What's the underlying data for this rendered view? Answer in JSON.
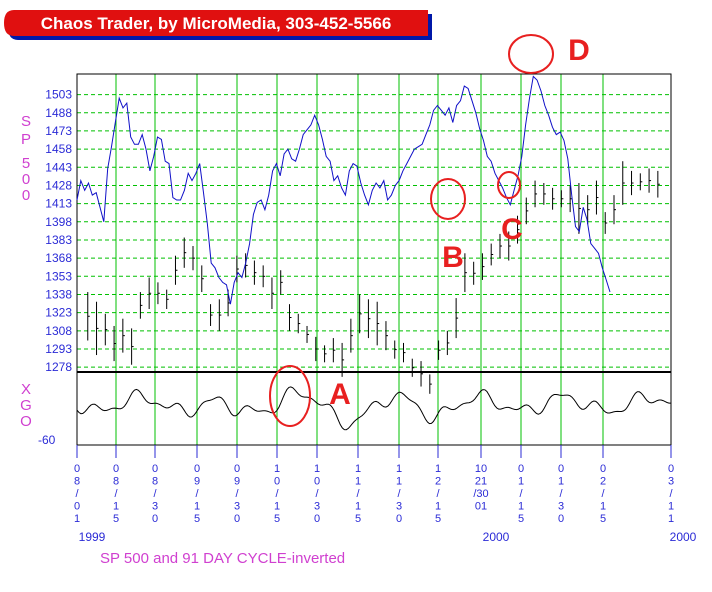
{
  "banner": {
    "title": "Chaos Trader, by MicroMedia, 303-452-5566"
  },
  "caption": "SP 500 and 91 DAY CYCLE-inverted",
  "chart_data": {
    "type": "line",
    "title": "Chaos Trader, by MicroMedia, 303-452-5566",
    "subtitle": "SP 500 and 91 DAY CYCLE-inverted",
    "upper_panel": {
      "ylabel": "SP 500",
      "yticks": [
        1278,
        1293,
        1308,
        1323,
        1338,
        1353,
        1368,
        1383,
        1398,
        1413,
        1428,
        1443,
        1458,
        1473,
        1488,
        1503
      ],
      "ylim": [
        1274,
        1520
      ],
      "price_bars": [
        {
          "x": 1.0,
          "h": 1340,
          "l": 1300
        },
        {
          "x": 2.0,
          "h": 1332,
          "l": 1288
        },
        {
          "x": 3.0,
          "h": 1322,
          "l": 1296
        },
        {
          "x": 4.0,
          "h": 1312,
          "l": 1283
        },
        {
          "x": 5.0,
          "h": 1318,
          "l": 1290
        },
        {
          "x": 6.0,
          "h": 1310,
          "l": 1280
        },
        {
          "x": 7.0,
          "h": 1340,
          "l": 1318
        },
        {
          "x": 8.0,
          "h": 1352,
          "l": 1326
        },
        {
          "x": 9.0,
          "h": 1348,
          "l": 1330
        },
        {
          "x": 10.0,
          "h": 1342,
          "l": 1326
        },
        {
          "x": 11.0,
          "h": 1370,
          "l": 1346
        },
        {
          "x": 12.0,
          "h": 1385,
          "l": 1360
        },
        {
          "x": 13.0,
          "h": 1378,
          "l": 1358
        },
        {
          "x": 14.0,
          "h": 1362,
          "l": 1340
        },
        {
          "x": 15.0,
          "h": 1330,
          "l": 1312
        },
        {
          "x": 16.0,
          "h": 1334,
          "l": 1308
        },
        {
          "x": 17.0,
          "h": 1342,
          "l": 1320
        },
        {
          "x": 18.0,
          "h": 1370,
          "l": 1348
        },
        {
          "x": 19.0,
          "h": 1372,
          "l": 1352
        },
        {
          "x": 20.0,
          "h": 1366,
          "l": 1346
        },
        {
          "x": 21.0,
          "h": 1362,
          "l": 1344
        },
        {
          "x": 22.0,
          "h": 1352,
          "l": 1326
        },
        {
          "x": 23.0,
          "h": 1358,
          "l": 1338
        },
        {
          "x": 24.0,
          "h": 1330,
          "l": 1308
        },
        {
          "x": 25.0,
          "h": 1322,
          "l": 1306
        },
        {
          "x": 26.0,
          "h": 1312,
          "l": 1298
        },
        {
          "x": 27.0,
          "h": 1303,
          "l": 1283
        },
        {
          "x": 28.0,
          "h": 1296,
          "l": 1282
        },
        {
          "x": 29.0,
          "h": 1302,
          "l": 1282
        },
        {
          "x": 30.0,
          "h": 1298,
          "l": 1270
        },
        {
          "x": 31.0,
          "h": 1318,
          "l": 1290
        },
        {
          "x": 32.0,
          "h": 1338,
          "l": 1306
        },
        {
          "x": 33.0,
          "h": 1334,
          "l": 1302
        },
        {
          "x": 34.0,
          "h": 1332,
          "l": 1296
        },
        {
          "x": 35.0,
          "h": 1316,
          "l": 1292
        },
        {
          "x": 36.0,
          "h": 1300,
          "l": 1285
        },
        {
          "x": 37.0,
          "h": 1298,
          "l": 1282
        },
        {
          "x": 38.0,
          "h": 1285,
          "l": 1270
        },
        {
          "x": 39.0,
          "h": 1283,
          "l": 1262
        },
        {
          "x": 40.0,
          "h": 1272,
          "l": 1256
        },
        {
          "x": 41.0,
          "h": 1300,
          "l": 1284
        },
        {
          "x": 42.0,
          "h": 1308,
          "l": 1288
        },
        {
          "x": 43.0,
          "h": 1335,
          "l": 1302
        },
        {
          "x": 44.0,
          "h": 1372,
          "l": 1340
        },
        {
          "x": 45.0,
          "h": 1365,
          "l": 1346
        },
        {
          "x": 46.0,
          "h": 1372,
          "l": 1350
        },
        {
          "x": 47.0,
          "h": 1380,
          "l": 1362
        },
        {
          "x": 48.0,
          "h": 1388,
          "l": 1368
        },
        {
          "x": 49.0,
          "h": 1390,
          "l": 1366
        },
        {
          "x": 50.0,
          "h": 1403,
          "l": 1380
        },
        {
          "x": 51.0,
          "h": 1418,
          "l": 1396
        },
        {
          "x": 52.0,
          "h": 1432,
          "l": 1410
        },
        {
          "x": 53.0,
          "h": 1430,
          "l": 1412
        },
        {
          "x": 54.0,
          "h": 1426,
          "l": 1408
        },
        {
          "x": 55.0,
          "h": 1424,
          "l": 1410
        },
        {
          "x": 56.0,
          "h": 1428,
          "l": 1406
        },
        {
          "x": 57.0,
          "h": 1430,
          "l": 1388
        },
        {
          "x": 58.0,
          "h": 1420,
          "l": 1396
        },
        {
          "x": 59.0,
          "h": 1432,
          "l": 1404
        },
        {
          "x": 60.0,
          "h": 1406,
          "l": 1388
        },
        {
          "x": 61.0,
          "h": 1420,
          "l": 1396
        },
        {
          "x": 62.0,
          "h": 1448,
          "l": 1412
        },
        {
          "x": 63.0,
          "h": 1440,
          "l": 1420
        },
        {
          "x": 64.0,
          "h": 1438,
          "l": 1424
        },
        {
          "x": 65.0,
          "h": 1442,
          "l": 1422
        },
        {
          "x": 66.0,
          "h": 1440,
          "l": 1418
        }
      ],
      "sp500_line": {
        "x": [
          0,
          1,
          2,
          3,
          4,
          5,
          6,
          7,
          8,
          9,
          10,
          11,
          12,
          13,
          14,
          15,
          16,
          17,
          18,
          19,
          20,
          21,
          22,
          23,
          24,
          25,
          26,
          27,
          28,
          29,
          30,
          31,
          32,
          33,
          34,
          35,
          36,
          37,
          38,
          39,
          40,
          41,
          42,
          43,
          44,
          45,
          46,
          47,
          48,
          49,
          50,
          51,
          52,
          53,
          54,
          55,
          56,
          57,
          58,
          59,
          60,
          61,
          62,
          63,
          64,
          65,
          66,
          67,
          68,
          69,
          70,
          71,
          72,
          73,
          74,
          75,
          76,
          77,
          78,
          79,
          80,
          81,
          82,
          83,
          84,
          85,
          86,
          87,
          88,
          89,
          90,
          91,
          92,
          93,
          94,
          95,
          96,
          97,
          98,
          99,
          100,
          101,
          102,
          103,
          104,
          105,
          106,
          107,
          108,
          109,
          110,
          111,
          112,
          113,
          114,
          115,
          116,
          117,
          118,
          119,
          120,
          121,
          122,
          123,
          124,
          125,
          126,
          127,
          128,
          129,
          130,
          131,
          132,
          133,
          134,
          135,
          136,
          137,
          138,
          139
        ],
        "y": [
          1416,
          1432,
          1424,
          1430,
          1420,
          1422,
          1410,
          1398,
          1442,
          1460,
          1480,
          1500,
          1492,
          1496,
          1468,
          1462,
          1462,
          1470,
          1458,
          1440,
          1452,
          1468,
          1466,
          1448,
          1446,
          1418,
          1416,
          1416,
          1424,
          1438,
          1432,
          1438,
          1446,
          1422,
          1396,
          1364,
          1360,
          1352,
          1348,
          1346,
          1330,
          1348,
          1356,
          1352,
          1364,
          1380,
          1404,
          1414,
          1416,
          1408,
          1420,
          1440,
          1446,
          1436,
          1454,
          1458,
          1450,
          1448,
          1458,
          1470,
          1474,
          1478,
          1486,
          1478,
          1466,
          1452,
          1448,
          1432,
          1436,
          1426,
          1420,
          1440,
          1446,
          1444,
          1430,
          1420,
          1412,
          1424,
          1430,
          1426,
          1432,
          1416,
          1420,
          1428,
          1432,
          1440,
          1446,
          1452,
          1458,
          1460,
          1462,
          1470,
          1478,
          1490,
          1494,
          1490,
          1486,
          1492,
          1480,
          1494,
          1498,
          1510,
          1508,
          1498,
          1488,
          1475,
          1465,
          1452,
          1448,
          1438,
          1432,
          1426,
          1418,
          1412,
          1424,
          1436,
          1452,
          1478,
          1500,
          1518,
          1515,
          1506,
          1494,
          1486,
          1476,
          1470,
          1472,
          1465,
          1450,
          1420,
          1394,
          1390,
          1410,
          1400,
          1380,
          1376,
          1372,
          1360,
          1350,
          1340
        ]
      }
    },
    "lower_panel": {
      "ylabel": "XGO",
      "ytick_label": "-60"
    },
    "x_axis": {
      "tick_labels": [
        "08/01",
        "08/15",
        "08/30",
        "09/15",
        "09/30",
        "10/15",
        "10/30",
        "11/15",
        "11/30",
        "12/15",
        "10 21 /30 01",
        "01/15",
        "01/30",
        "02/15",
        "03/11"
      ],
      "year_labels": [
        "1999",
        "2000",
        "2000"
      ]
    },
    "annotations": [
      "A",
      "B",
      "C",
      "D"
    ]
  }
}
